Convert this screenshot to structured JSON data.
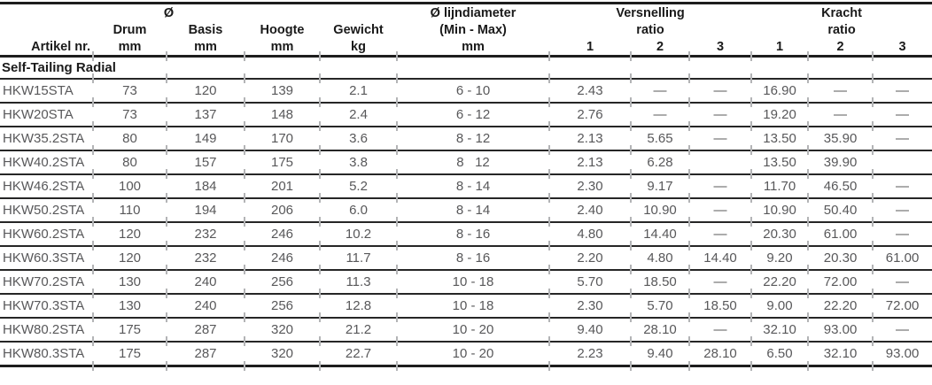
{
  "table": {
    "section_title": "Self-Tailing Radial",
    "header": {
      "artikel": "Artikel nr.",
      "diameter_symbol": "Ø",
      "drum": "Drum",
      "basis": "Basis",
      "hoogte": "Hoogte",
      "gewicht": "Gewicht",
      "mm": "mm",
      "kg": "kg",
      "lijndiameter_title": "Ø lijndiameter",
      "lijndiameter_range": "(Min - Max)",
      "lijndiameter_unit": "mm",
      "versnelling": "Versnelling",
      "kracht": "Kracht",
      "ratio": "ratio",
      "gear1": "1",
      "gear2": "2",
      "gear3": "3"
    },
    "rows": [
      {
        "artikel": "HKW15STA",
        "drum": "73",
        "basis": "120",
        "hoogte": "139",
        "gewicht": "2.1",
        "lijn": "6 - 10",
        "v1": "2.43",
        "v2": "—",
        "v3": "—",
        "k1": "16.90",
        "k2": "—",
        "k3": "—"
      },
      {
        "artikel": "HKW20STA",
        "drum": "73",
        "basis": "137",
        "hoogte": "148",
        "gewicht": "2.4",
        "lijn": "6 - 12",
        "v1": "2.76",
        "v2": "—",
        "v3": "—",
        "k1": "19.20",
        "k2": "—",
        "k3": "—"
      },
      {
        "artikel": "HKW35.2STA",
        "drum": "80",
        "basis": "149",
        "hoogte": "170",
        "gewicht": "3.6",
        "lijn": "8 - 12",
        "v1": "2.13",
        "v2": "5.65",
        "v3": "—",
        "k1": "13.50",
        "k2": "35.90",
        "k3": "—"
      },
      {
        "artikel": "HKW40.2STA",
        "drum": "80",
        "basis": "157",
        "hoogte": "175",
        "gewicht": "3.8",
        "lijn": "8   12",
        "v1": "2.13",
        "v2": "6.28",
        "v3": "",
        "k1": "13.50",
        "k2": "39.90",
        "k3": ""
      },
      {
        "artikel": "HKW46.2STA",
        "drum": "100",
        "basis": "184",
        "hoogte": "201",
        "gewicht": "5.2",
        "lijn": "8 - 14",
        "v1": "2.30",
        "v2": "9.17",
        "v3": "—",
        "k1": "11.70",
        "k2": "46.50",
        "k3": "—"
      },
      {
        "artikel": "HKW50.2STA",
        "drum": "110",
        "basis": "194",
        "hoogte": "206",
        "gewicht": "6.0",
        "lijn": "8 - 14",
        "v1": "2.40",
        "v2": "10.90",
        "v3": "—",
        "k1": "10.90",
        "k2": "50.40",
        "k3": "—"
      },
      {
        "artikel": "HKW60.2STA",
        "drum": "120",
        "basis": "232",
        "hoogte": "246",
        "gewicht": "10.2",
        "lijn": "8 - 16",
        "v1": "4.80",
        "v2": "14.40",
        "v3": "—",
        "k1": "20.30",
        "k2": "61.00",
        "k3": "—"
      },
      {
        "artikel": "HKW60.3STA",
        "drum": "120",
        "basis": "232",
        "hoogte": "246",
        "gewicht": "11.7",
        "lijn": "8 - 16",
        "v1": "2.20",
        "v2": "4.80",
        "v3": "14.40",
        "k1": "9.20",
        "k2": "20.30",
        "k3": "61.00"
      },
      {
        "artikel": "HKW70.2STA",
        "drum": "130",
        "basis": "240",
        "hoogte": "256",
        "gewicht": "11.3",
        "lijn": "10 - 18",
        "v1": "5.70",
        "v2": "18.50",
        "v3": "—",
        "k1": "22.20",
        "k2": "72.00",
        "k3": "—"
      },
      {
        "artikel": "HKW70.3STA",
        "drum": "130",
        "basis": "240",
        "hoogte": "256",
        "gewicht": "12.8",
        "lijn": "10 - 18",
        "v1": "2.30",
        "v2": "5.70",
        "v3": "18.50",
        "k1": "9.00",
        "k2": "22.20",
        "k3": "72.00"
      },
      {
        "artikel": "HKW80.2STA",
        "drum": "175",
        "basis": "287",
        "hoogte": "320",
        "gewicht": "21.2",
        "lijn": "10 - 20",
        "v1": "9.40",
        "v2": "28.10",
        "v3": "—",
        "k1": "32.10",
        "k2": "93.00",
        "k3": "—"
      },
      {
        "artikel": "HKW80.3STA",
        "drum": "175",
        "basis": "287",
        "hoogte": "320",
        "gewicht": "22.7",
        "lijn": "10 - 20",
        "v1": "2.23",
        "v2": "9.40",
        "v3": "28.10",
        "k1": "6.50",
        "k2": "32.10",
        "k3": "93.00"
      }
    ]
  }
}
